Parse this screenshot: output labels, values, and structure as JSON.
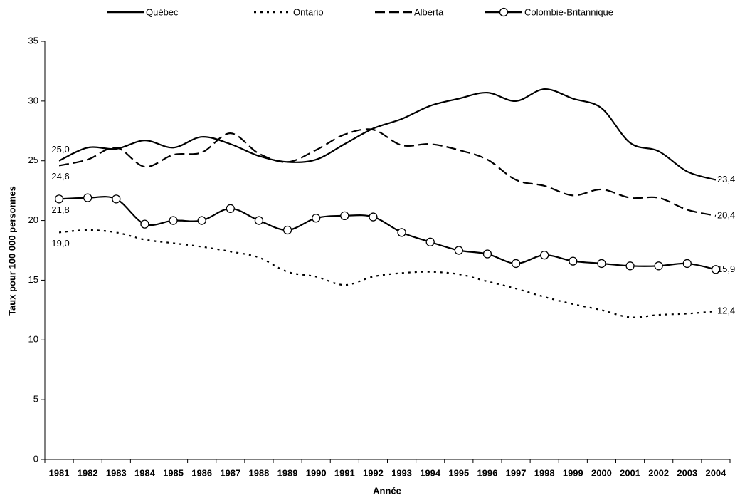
{
  "chart_data": {
    "type": "line",
    "x_label": "Année",
    "y_label": "Taux pour 100 000 personnes",
    "categories": [
      "1981",
      "1982",
      "1983",
      "1984",
      "1985",
      "1986",
      "1987",
      "1988",
      "1989",
      "1990",
      "1991",
      "1992",
      "1993",
      "1994",
      "1995",
      "1996",
      "1997",
      "1998",
      "1999",
      "2000",
      "2001",
      "2002",
      "2003",
      "2004"
    ],
    "ylim": [
      0,
      35
    ],
    "yticks": [
      0,
      5,
      10,
      15,
      20,
      25,
      30,
      35
    ],
    "series": [
      {
        "name": "Québec",
        "color": "#000000",
        "line_style": "solid",
        "marker": "none",
        "values": [
          25.0,
          26.1,
          26.0,
          26.7,
          26.1,
          27.0,
          26.4,
          25.4,
          24.9,
          25.1,
          26.4,
          27.7,
          28.5,
          29.6,
          30.2,
          30.7,
          30.0,
          31.0,
          30.2,
          29.4,
          26.5,
          25.8,
          24.1,
          23.4
        ],
        "value_labels": [
          "25,0",
          null,
          null,
          null,
          null,
          null,
          null,
          null,
          null,
          null,
          null,
          null,
          null,
          null,
          null,
          null,
          null,
          null,
          null,
          null,
          null,
          null,
          null,
          "23,4"
        ]
      },
      {
        "name": "Ontario",
        "color": "#000000",
        "line_style": "dotted",
        "marker": "none",
        "values": [
          19.0,
          19.2,
          19.0,
          18.4,
          18.1,
          17.8,
          17.4,
          16.9,
          15.7,
          15.3,
          14.6,
          15.3,
          15.6,
          15.7,
          15.5,
          14.9,
          14.3,
          13.6,
          13.0,
          12.5,
          11.9,
          12.1,
          12.2,
          12.4
        ],
        "value_labels": [
          "19,0",
          null,
          null,
          null,
          null,
          null,
          null,
          null,
          null,
          null,
          null,
          null,
          null,
          null,
          null,
          null,
          null,
          null,
          null,
          null,
          null,
          null,
          null,
          "12,4"
        ]
      },
      {
        "name": "Alberta",
        "color": "#000000",
        "line_style": "dashed",
        "marker": "none",
        "values": [
          24.6,
          25.1,
          26.1,
          24.5,
          25.5,
          25.7,
          27.3,
          25.6,
          24.9,
          25.9,
          27.2,
          27.6,
          26.3,
          26.4,
          25.9,
          25.1,
          23.4,
          22.9,
          22.1,
          22.6,
          21.9,
          21.9,
          20.9,
          20.4
        ],
        "value_labels": [
          "24,6",
          null,
          null,
          null,
          null,
          null,
          null,
          null,
          null,
          null,
          null,
          null,
          null,
          null,
          null,
          null,
          null,
          null,
          null,
          null,
          null,
          null,
          null,
          "20,4"
        ]
      },
      {
        "name": "Colombie-Britannique",
        "color": "#000000",
        "line_style": "solid",
        "marker": "circle",
        "values": [
          21.8,
          21.9,
          21.8,
          19.7,
          20.0,
          20.0,
          21.0,
          20.0,
          19.2,
          20.2,
          20.4,
          20.3,
          19.0,
          18.2,
          17.5,
          17.2,
          16.4,
          17.1,
          16.6,
          16.4,
          16.2,
          16.2,
          16.4,
          15.9
        ],
        "value_labels": [
          "21,8",
          null,
          null,
          null,
          null,
          null,
          null,
          null,
          null,
          null,
          null,
          null,
          null,
          null,
          null,
          null,
          null,
          null,
          null,
          null,
          null,
          null,
          null,
          "15,9"
        ]
      }
    ]
  }
}
